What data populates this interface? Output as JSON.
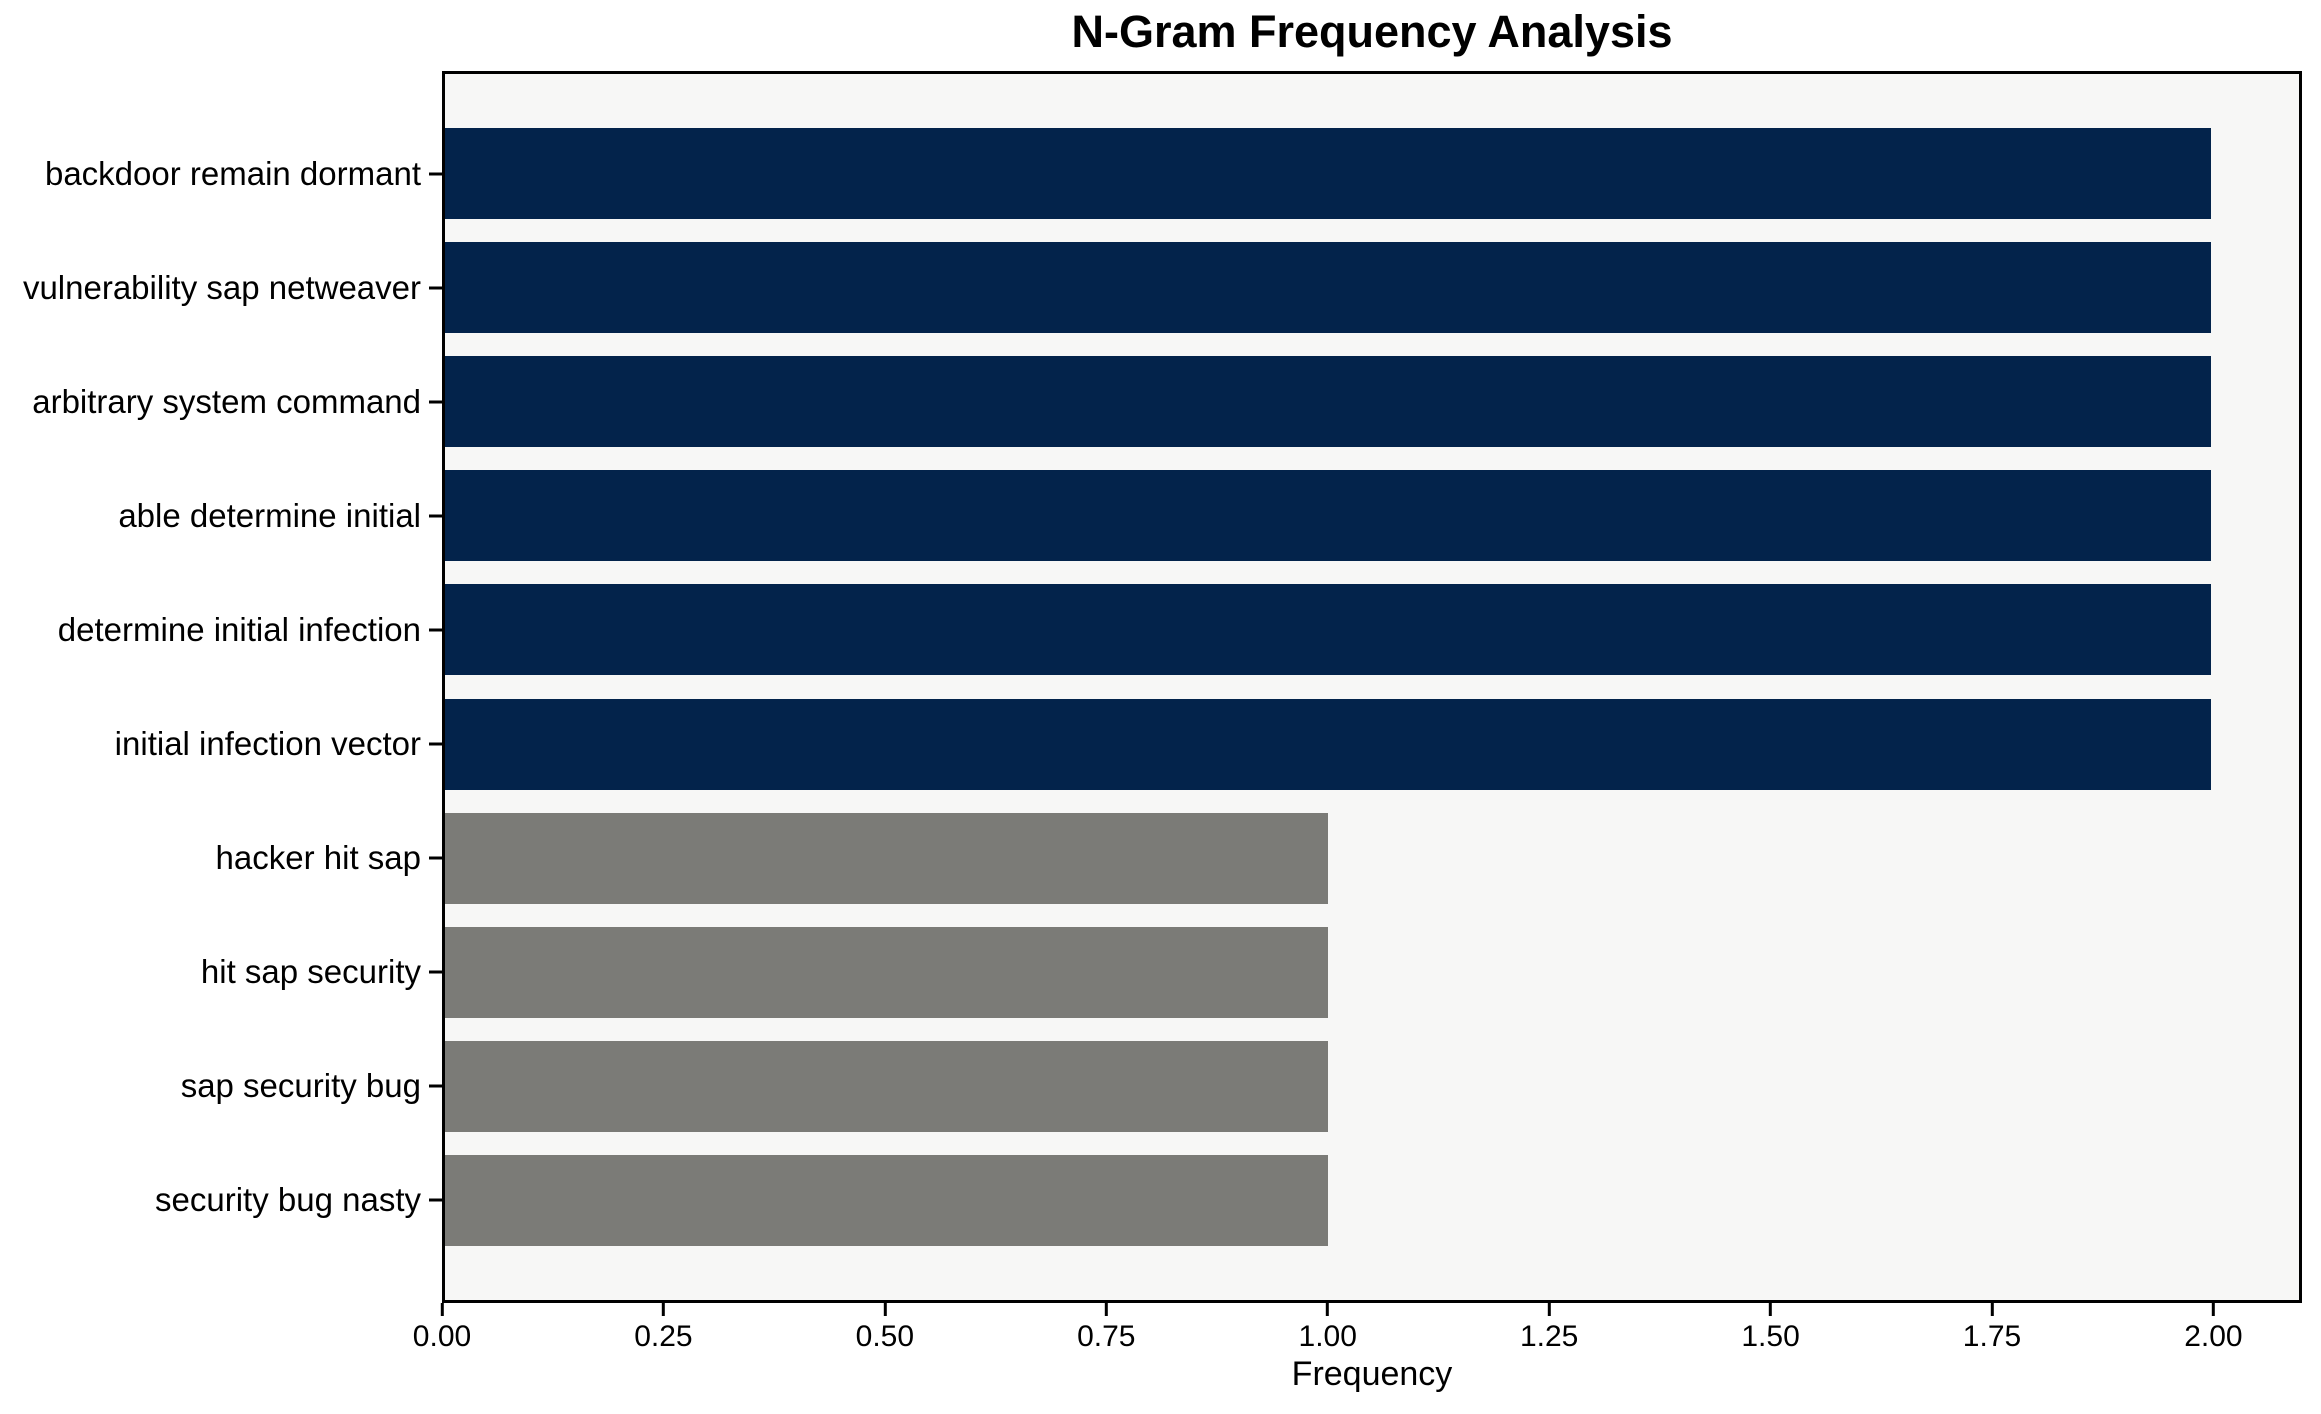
{
  "chart_data": {
    "type": "bar",
    "orientation": "horizontal",
    "title": "N-Gram Frequency Analysis",
    "xlabel": "Frequency",
    "ylabel": "",
    "categories": [
      "backdoor remain dormant",
      "vulnerability sap netweaver",
      "arbitrary system command",
      "able determine initial",
      "determine initial infection",
      "initial infection vector",
      "hacker hit sap",
      "hit sap security",
      "sap security bug",
      "security bug nasty"
    ],
    "values": [
      2,
      2,
      2,
      2,
      2,
      2,
      1,
      1,
      1,
      1
    ],
    "bar_colors": [
      "#03234b",
      "#03234b",
      "#03234b",
      "#03234b",
      "#03234b",
      "#03234b",
      "#7b7b77",
      "#7b7b77",
      "#7b7b77",
      "#7b7b77"
    ],
    "xlim": [
      0,
      2.1
    ],
    "xticks": [
      0,
      0.25,
      0.5,
      0.75,
      1.0,
      1.25,
      1.5,
      1.75,
      2.0
    ],
    "xtick_labels": [
      "0.00",
      "0.25",
      "0.50",
      "0.75",
      "1.00",
      "1.25",
      "1.50",
      "1.75",
      "2.00"
    ],
    "grid": false,
    "legend": null,
    "plot_background": "#f7f7f6",
    "figure_background": "#ffffff",
    "spine_color": "#000000",
    "text_color": "#000000"
  }
}
